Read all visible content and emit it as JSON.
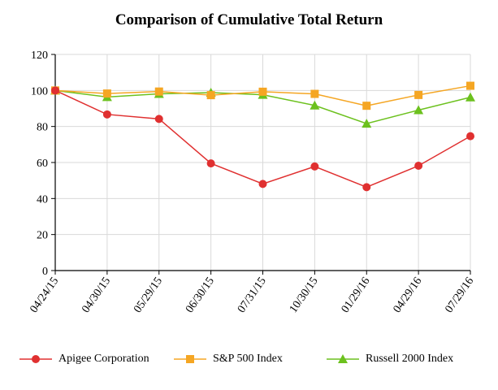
{
  "chart_data": {
    "type": "line",
    "title": "Comparison of Cumulative Total Return",
    "xlabel": "",
    "ylabel": "",
    "categories": [
      "04/24/15",
      "04/30/15",
      "05/29/15",
      "06/30/15",
      "07/31/15",
      "10/30/15",
      "01/29/16",
      "04/29/16",
      "07/29/16"
    ],
    "ylim": [
      0,
      120
    ],
    "yticks": [
      0,
      20,
      40,
      60,
      80,
      100,
      120
    ],
    "grid": true,
    "legend_position": "bottom",
    "series": [
      {
        "name": "Apigee Corporation",
        "color": "#e03030",
        "marker": "circle",
        "values": [
          100,
          86.7,
          84.2,
          59.5,
          48.1,
          57.8,
          46.3,
          58.2,
          74.6
        ]
      },
      {
        "name": "S&P 500 Index",
        "color": "#f5a623",
        "marker": "square",
        "values": [
          100,
          98.3,
          99.4,
          97.4,
          99.3,
          98.1,
          91.5,
          97.5,
          102.6
        ]
      },
      {
        "name": "Russell 2000 Index",
        "color": "#6cc11e",
        "marker": "triangle",
        "values": [
          100,
          96.4,
          98.1,
          98.8,
          97.6,
          91.7,
          81.6,
          89.1,
          96.2
        ]
      }
    ]
  }
}
